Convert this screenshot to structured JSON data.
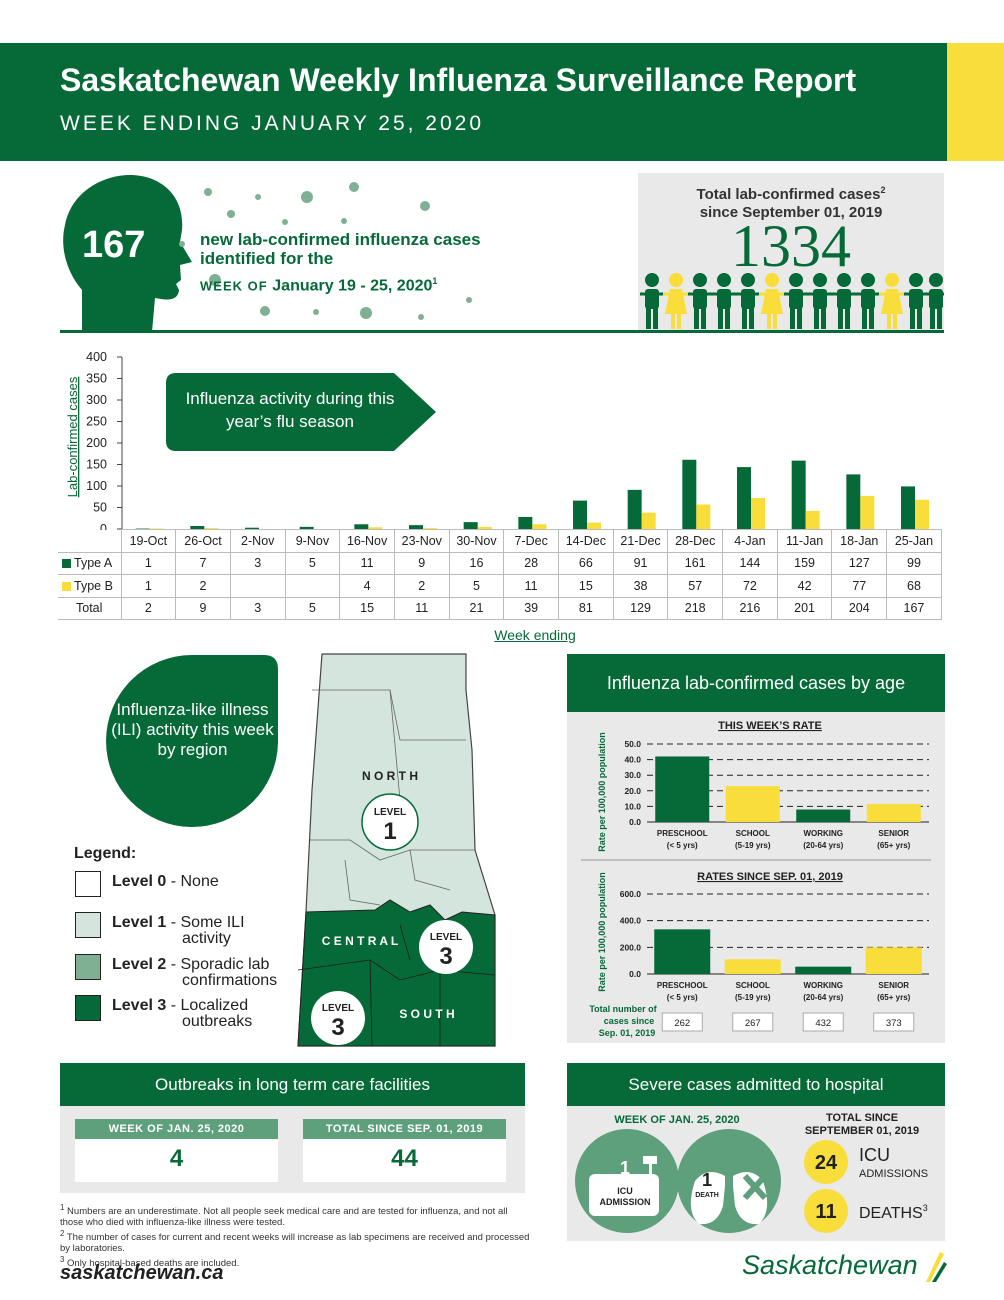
{
  "header": {
    "title": "Saskatchewan Weekly Influenza Surveillance Report",
    "subtitle": "WEEK ENDING JANUARY 25, 2020"
  },
  "summary": {
    "new_cases": "167",
    "new_line1": "new lab-confirmed influenza cases",
    "new_line2": "identified for the",
    "new_line3_prefix": "WEEK OF ",
    "new_line3_big": "January 19 - 25, 2020",
    "new_sup": "1",
    "total_label_line1": "Total lab-confirmed cases",
    "total_sup": "2",
    "total_label_line2": "since September 01, 2019",
    "total_cases": "1334"
  },
  "chart_data": [
    {
      "type": "bar",
      "title": "Influenza activity during this year’s flu season",
      "xlabel": "Week ending",
      "ylabel": "Lab-confirmed cases",
      "ylim": [
        0,
        400
      ],
      "yticks": [
        0,
        50,
        100,
        150,
        200,
        250,
        300,
        350,
        400
      ],
      "categories": [
        "19-Oct",
        "26-Oct",
        "2-Nov",
        "9-Nov",
        "16-Nov",
        "23-Nov",
        "30-Nov",
        "7-Dec",
        "14-Dec",
        "21-Dec",
        "28-Dec",
        "4-Jan",
        "11-Jan",
        "18-Jan",
        "25-Jan"
      ],
      "series": [
        {
          "name": "Type A",
          "color": "#066a38",
          "values": [
            1,
            7,
            3,
            5,
            11,
            9,
            16,
            28,
            66,
            91,
            161,
            144,
            159,
            127,
            99
          ]
        },
        {
          "name": "Type B",
          "color": "#f8dd3b",
          "values": [
            1,
            2,
            null,
            null,
            4,
            2,
            5,
            11,
            15,
            38,
            57,
            72,
            42,
            77,
            68
          ]
        }
      ],
      "totals_label": "Total",
      "totals": [
        2,
        9,
        3,
        5,
        15,
        11,
        21,
        39,
        81,
        129,
        218,
        216,
        201,
        204,
        167
      ]
    },
    {
      "type": "bar",
      "title": "THIS WEEK’S RATE",
      "ylabel": "Rate per 100,000 population",
      "ylim": [
        0,
        50
      ],
      "yticks": [
        "0.0",
        "10.0",
        "20.0",
        "30.0",
        "40.0",
        "50.0"
      ],
      "categories": [
        "PRESCHOOL",
        "SCHOOL",
        "WORKING",
        "SENIOR"
      ],
      "subcategories": [
        "(< 5 yrs)",
        "(5-19 yrs)",
        "(20-64 yrs)",
        "(65+ yrs)"
      ],
      "values": [
        42,
        23,
        8,
        11.5
      ],
      "colors": [
        "#066a38",
        "#f8dd3b",
        "#066a38",
        "#f8dd3b"
      ]
    },
    {
      "type": "bar",
      "title": "RATES SINCE SEP. 01, 2019",
      "ylabel": "Rate per 100,000 population",
      "ylim": [
        0,
        600
      ],
      "yticks": [
        "0.0",
        "200.0",
        "400.0",
        "600.0"
      ],
      "categories": [
        "PRESCHOOL",
        "SCHOOL",
        "WORKING",
        "SENIOR"
      ],
      "subcategories": [
        "(< 5 yrs)",
        "(5-19 yrs)",
        "(20-64 yrs)",
        "(65+ yrs)"
      ],
      "values": [
        335,
        110,
        55,
        200
      ],
      "colors": [
        "#066a38",
        "#f8dd3b",
        "#066a38",
        "#f8dd3b"
      ],
      "counts_label": "Total number of cases since Sep. 01, 2019",
      "counts": [
        "262",
        "267",
        "432",
        "373"
      ]
    }
  ],
  "ili": {
    "title": "Influenza-like illness (ILI) activity this week by region",
    "legend_title": "Legend:",
    "legend": [
      {
        "level": "Level 0",
        "desc1": "- None",
        "desc2": "",
        "color": "#ffffff"
      },
      {
        "level": "Level 1",
        "desc1": "- Some ILI",
        "desc2": "activity",
        "color": "#d3e5dc"
      },
      {
        "level": "Level 2",
        "desc1": "- Sporadic lab",
        "desc2": "confirmations",
        "color": "#7fb093"
      },
      {
        "level": "Level 3",
        "desc1": "- Localized",
        "desc2": "outbreaks",
        "color": "#066a38"
      }
    ],
    "regions": [
      {
        "name": "N O R T H",
        "level_label": "LEVEL",
        "level": "1"
      },
      {
        "name": "C E N T R A L",
        "level_label": "LEVEL",
        "level": "3"
      },
      {
        "name": "S O U T H",
        "level_label": "LEVEL",
        "level": "3"
      }
    ]
  },
  "age": {
    "header": "Influenza lab-confirmed cases by age"
  },
  "outbreaks": {
    "header": "Outbreaks in long term care facilities",
    "week_label": "WEEK OF JAN. 25, 2020",
    "week_value": "4",
    "total_label": "TOTAL SINCE SEP. 01, 2019",
    "total_value": "44"
  },
  "severe": {
    "header": "Severe cases admitted to hospital",
    "week_label": "WEEK OF JAN. 25, 2020",
    "icu_count": "1",
    "icu_label1": "ICU",
    "icu_label2": "ADMISSION",
    "death_count": "1",
    "death_label": "DEATH",
    "total_label1": "TOTAL SINCE",
    "total_label2": "SEPTEMBER 01, 2019",
    "total_icu": "24",
    "total_icu_label1": "ICU",
    "total_icu_label2": "ADMISSIONS",
    "total_deaths": "11",
    "total_deaths_label": "DEATHS",
    "deaths_sup": "3"
  },
  "footer": {
    "note1": "Numbers are an underestimate. Not all people seek medical care and are tested for influenza, and not all those who died with influenza-like illness were tested.",
    "note2": "The number of cases for current and recent weeks will increase as lab specimens are received and processed by laboratories.",
    "note3": "Only hospital-based deaths are included.",
    "site": "saskatchewan.ca",
    "brand": "Saskatchewan"
  },
  "colors": {
    "green": "#066a38",
    "yellow": "#f8dd3b",
    "light_green": "#d3e5dc",
    "mid_green": "#7fb093",
    "grey": "#e9e9e9"
  }
}
